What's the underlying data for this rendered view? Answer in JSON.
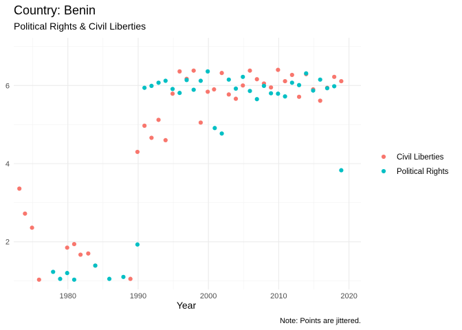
{
  "chart_data": {
    "type": "scatter",
    "title": "Country: Benin",
    "subtitle": "Political Rights & Civil Liberties",
    "xlabel": "Year",
    "ylabel": "",
    "caption": "Note: Points are jittered.",
    "xlim": [
      1972.3,
      2021.7
    ],
    "ylim": [
      0.78,
      7.22
    ],
    "xticks": [
      1980,
      1990,
      2000,
      2010,
      2020
    ],
    "yticks": [
      2,
      4,
      6
    ],
    "grid": true,
    "legend_position": "right",
    "series": [
      {
        "name": "Civil Liberties",
        "color": "#F8766D",
        "points": [
          [
            1973.1,
            3.36
          ],
          [
            1973.9,
            2.72
          ],
          [
            1974.9,
            2.36
          ],
          [
            1975.9,
            1.03
          ],
          [
            1979.9,
            1.85
          ],
          [
            1980.9,
            1.94
          ],
          [
            1981.8,
            1.67
          ],
          [
            1982.9,
            1.7
          ],
          [
            1983.9,
            1.39
          ],
          [
            1988.9,
            1.05
          ],
          [
            1989.9,
            4.3
          ],
          [
            1990.9,
            4.97
          ],
          [
            1991.9,
            4.66
          ],
          [
            1992.9,
            5.12
          ],
          [
            1993.9,
            4.6
          ],
          [
            1994.9,
            5.79
          ],
          [
            1995.9,
            6.36
          ],
          [
            1996.9,
            6.17
          ],
          [
            1997.9,
            6.38
          ],
          [
            1998.9,
            5.05
          ],
          [
            1999.9,
            5.84
          ],
          [
            2000.8,
            5.9
          ],
          [
            2001.9,
            6.32
          ],
          [
            2002.9,
            5.77
          ],
          [
            2003.9,
            5.66
          ],
          [
            2004.9,
            6.0
          ],
          [
            2005.9,
            6.38
          ],
          [
            2006.9,
            6.16
          ],
          [
            2007.9,
            6.05
          ],
          [
            2008.9,
            5.95
          ],
          [
            2009.9,
            6.4
          ],
          [
            2010.9,
            6.11
          ],
          [
            2011.9,
            6.27
          ],
          [
            2012.9,
            5.71
          ],
          [
            2013.9,
            6.29
          ],
          [
            2014.9,
            5.9
          ],
          [
            2015.9,
            5.61
          ],
          [
            2016.9,
            5.94
          ],
          [
            2017.9,
            6.22
          ],
          [
            2018.9,
            6.11
          ]
        ]
      },
      {
        "name": "Political Rights",
        "color": "#00BFC4",
        "points": [
          [
            1977.9,
            1.23
          ],
          [
            1978.9,
            1.05
          ],
          [
            1979.9,
            1.2
          ],
          [
            1980.9,
            1.03
          ],
          [
            1983.9,
            1.39
          ],
          [
            1985.9,
            1.05
          ],
          [
            1987.9,
            1.1
          ],
          [
            1989.9,
            1.93
          ],
          [
            1990.9,
            5.94
          ],
          [
            1991.9,
            5.99
          ],
          [
            1992.9,
            6.07
          ],
          [
            1993.9,
            6.12
          ],
          [
            1994.9,
            5.91
          ],
          [
            1995.9,
            5.81
          ],
          [
            1996.9,
            6.14
          ],
          [
            1997.9,
            5.89
          ],
          [
            1998.9,
            6.12
          ],
          [
            1999.9,
            6.36
          ],
          [
            2000.9,
            4.91
          ],
          [
            2001.9,
            4.77
          ],
          [
            2002.9,
            6.15
          ],
          [
            2003.9,
            5.92
          ],
          [
            2004.9,
            6.22
          ],
          [
            2005.9,
            5.86
          ],
          [
            2006.9,
            5.65
          ],
          [
            2007.9,
            5.99
          ],
          [
            2008.9,
            5.8
          ],
          [
            2009.9,
            5.79
          ],
          [
            2010.9,
            5.72
          ],
          [
            2011.9,
            6.07
          ],
          [
            2012.9,
            6.01
          ],
          [
            2013.9,
            6.31
          ],
          [
            2014.9,
            5.87
          ],
          [
            2015.9,
            6.15
          ],
          [
            2016.9,
            5.93
          ],
          [
            2017.9,
            5.98
          ],
          [
            2018.9,
            3.83
          ]
        ]
      }
    ]
  }
}
